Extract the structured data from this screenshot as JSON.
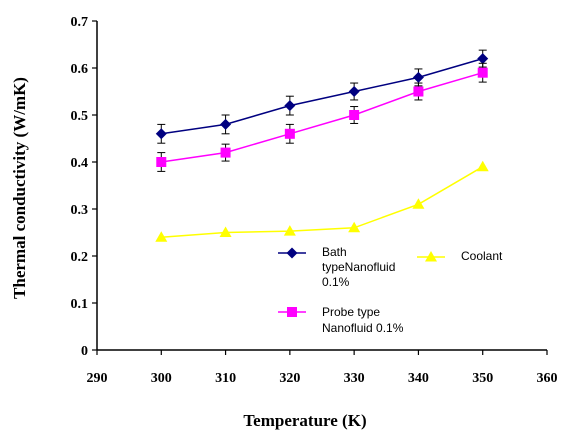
{
  "chart_data": {
    "type": "line",
    "xlabel": "Temperature (K)",
    "ylabel": "Thermal conductivity (W/mK)",
    "xlim": [
      290,
      360
    ],
    "ylim": [
      0,
      0.7
    ],
    "xticks": [
      "290",
      "300",
      "310",
      "320",
      "330",
      "340",
      "350",
      "360"
    ],
    "yticks": [
      "0",
      "0.1",
      "0.2",
      "0.3",
      "0.4",
      "0.5",
      "0.6",
      "0.7"
    ],
    "grid": false,
    "legend_position": "inside-bottom",
    "x": [
      300,
      310,
      320,
      330,
      340,
      350
    ],
    "series": [
      {
        "name_lines": [
          "Bath",
          "typeNanofluid",
          "0.1%"
        ],
        "color": "#000080",
        "marker": "diamond",
        "values": [
          0.46,
          0.48,
          0.52,
          0.55,
          0.58,
          0.62
        ],
        "error": [
          0.02,
          0.02,
          0.02,
          0.018,
          0.018,
          0.018
        ]
      },
      {
        "name_lines": [
          "Probe type",
          "Nanofluid 0.1%"
        ],
        "color": "#FF00FF",
        "marker": "square",
        "values": [
          0.4,
          0.42,
          0.46,
          0.5,
          0.55,
          0.59
        ],
        "error": [
          0.02,
          0.018,
          0.02,
          0.018,
          0.018,
          0.02
        ]
      },
      {
        "name_lines": [
          "Coolant"
        ],
        "color": "#FFFF00",
        "marker": "triangle",
        "values": [
          0.24,
          0.25,
          0.253,
          0.26,
          0.31,
          0.39
        ],
        "error": []
      }
    ]
  }
}
